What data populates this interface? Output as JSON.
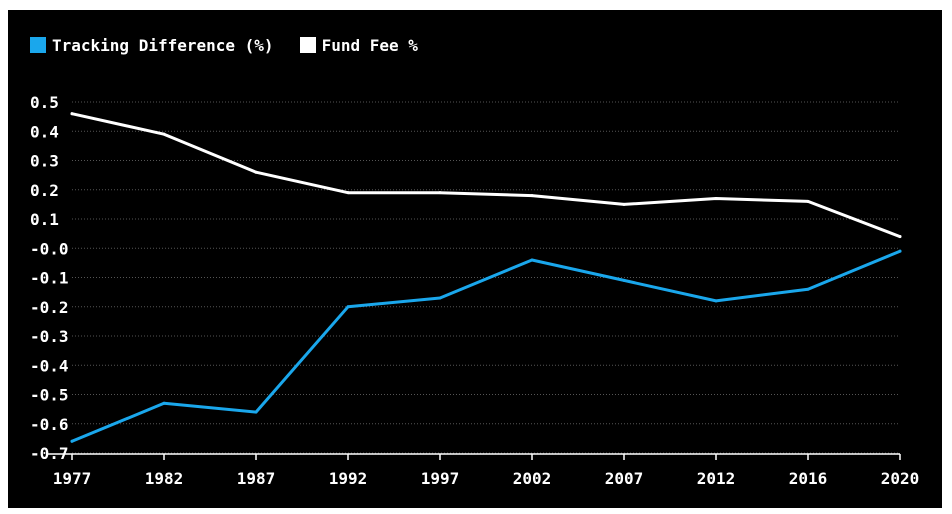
{
  "chart_data": {
    "type": "line",
    "title": "",
    "xlabel": "",
    "ylabel": "",
    "categories": [
      "1977",
      "1982",
      "1987",
      "1992",
      "1997",
      "2002",
      "2007",
      "2012",
      "2016",
      "2020"
    ],
    "series": [
      {
        "name": "Tracking Difference (%)",
        "color": "#1aa7ec",
        "values": [
          -0.66,
          -0.53,
          -0.56,
          -0.2,
          -0.17,
          -0.04,
          -0.11,
          -0.18,
          -0.14,
          -0.01
        ]
      },
      {
        "name": "Fund Fee %",
        "color": "#ffffff",
        "values": [
          0.46,
          0.39,
          0.26,
          0.19,
          0.19,
          0.18,
          0.15,
          0.17,
          0.16,
          0.04
        ]
      }
    ],
    "ylim": [
      -0.7,
      0.5
    ],
    "yticks": [
      "0.5",
      "0.4",
      "0.3",
      "0.2",
      "0.1",
      "-0.0",
      "-0.1",
      "-0.2",
      "-0.3",
      "-0.4",
      "-0.5",
      "-0.6",
      "-0.7"
    ],
    "ytick_values": [
      0.5,
      0.4,
      0.3,
      0.2,
      0.1,
      0.0,
      -0.1,
      -0.2,
      -0.3,
      -0.4,
      -0.5,
      -0.6,
      -0.7
    ],
    "grid": "horizontal dotted",
    "legend_position": "top-left",
    "background": "#000000",
    "text_color": "#ffffff",
    "grid_color": "#555555"
  }
}
